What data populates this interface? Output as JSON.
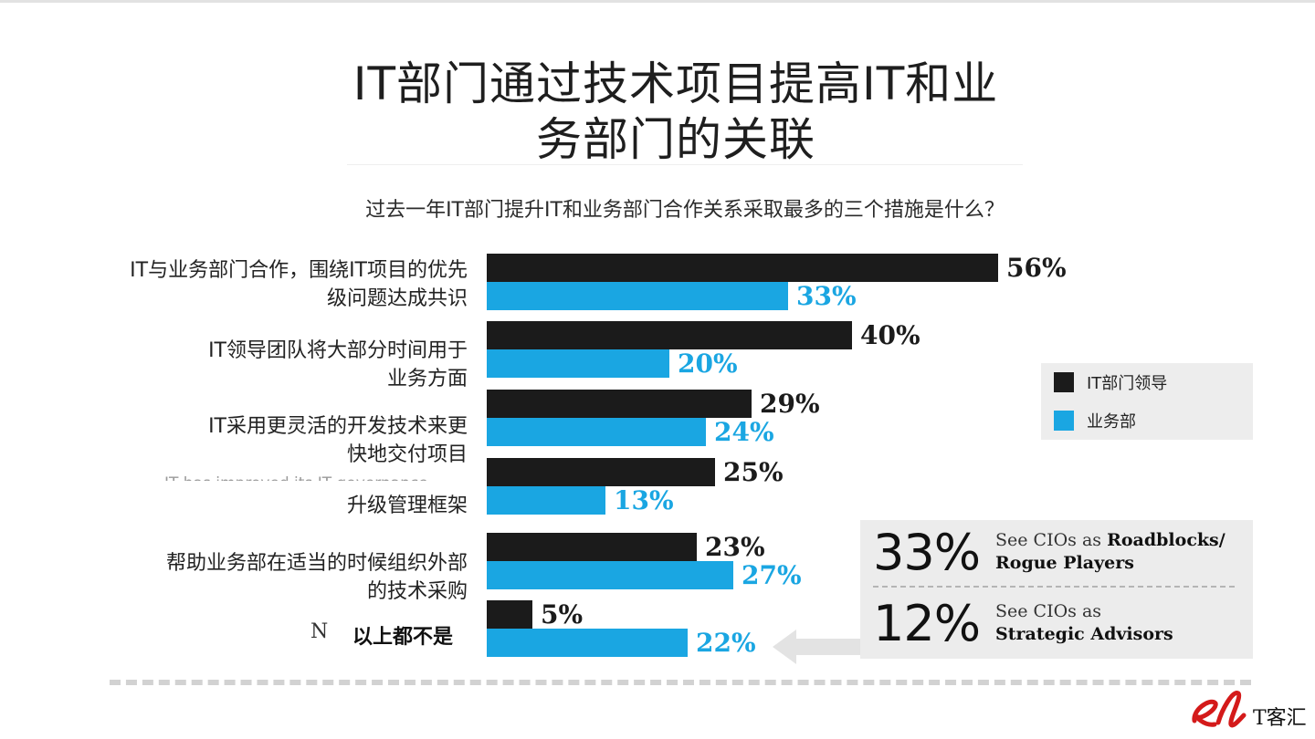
{
  "title_line1": "IT部门通过技术项目提高IT和业",
  "title_line2": "务部门的关联",
  "subtitle": "过去一年IT部门提升IT和业务部门合作关系采取最多的三个措施是什么？",
  "chart_data": {
    "type": "bar",
    "orientation": "horizontal",
    "title": "IT部门通过技术项目提高IT和业务部门的关联",
    "subtitle": "过去一年IT部门提升IT和业务部门合作关系采取最多的三个措施是什么？",
    "categories": [
      [
        "IT与业务部门合作，围绕IT项目的优先",
        "级问题达成共识"
      ],
      [
        "IT领导团队将大部分时间用于",
        "业务方面"
      ],
      [
        "IT采用更灵活的开发技术来更",
        "快地交付项目"
      ],
      [
        "升级管理框架"
      ],
      [
        "帮助业务部在适当的时候组织外部",
        "的技术采购"
      ],
      [
        "以上都不是"
      ]
    ],
    "series": [
      {
        "name": "IT部门领导",
        "color": "#1b1b1b",
        "values": [
          56,
          40,
          29,
          25,
          23,
          5
        ]
      },
      {
        "name": "业务部",
        "color": "#1aa6e2",
        "values": [
          33,
          20,
          24,
          13,
          27,
          22
        ]
      }
    ],
    "value_suffix": "%",
    "xlim": [
      0,
      56
    ],
    "legend_position": "right",
    "grid": false
  },
  "partial_text": {
    "fragment": "IT has improved its IT governance",
    "stray_letter": "N"
  },
  "callout": {
    "item1_pct": "33%",
    "item1_line1_plain": "See CIOs as ",
    "item1_line1_bold": "Roadblocks/",
    "item1_line2_bold": "Rogue Players",
    "item2_pct": "12%",
    "item2_line1_plain": "See CIOs as",
    "item2_line2_bold": "Strategic Advisors"
  },
  "logo": {
    "mark": "el",
    "text": "T客汇"
  },
  "colors": {
    "it_leaders": "#1b1b1b",
    "business": "#1aa6e2",
    "panel": "#ececec",
    "logo_red": "#d41a1a"
  }
}
